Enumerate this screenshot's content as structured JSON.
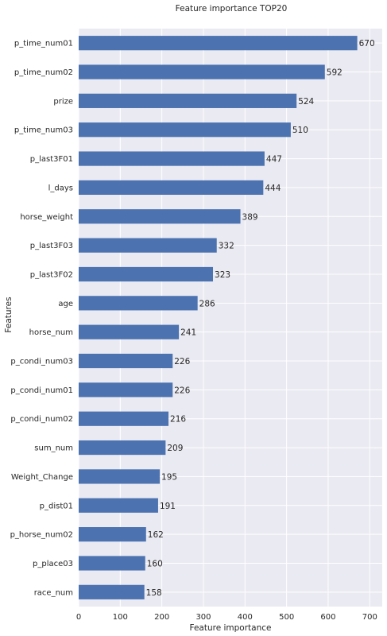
{
  "chart_data": {
    "type": "bar",
    "orientation": "horizontal",
    "title": "Feature importance TOP20",
    "xlabel": "Feature importance",
    "ylabel": "Features",
    "xlim": [
      0,
      730
    ],
    "xticks": [
      0,
      100,
      200,
      300,
      400,
      500,
      600,
      700
    ],
    "grid": true,
    "colors": {
      "bar": "#4c72b0",
      "background": "#eaeaf2",
      "grid": "#ffffff",
      "text": "#262626"
    },
    "categories": [
      "p_time_num01",
      "p_time_num02",
      "prize",
      "p_time_num03",
      "p_last3F01",
      "l_days",
      "horse_weight",
      "p_last3F03",
      "p_last3F02",
      "age",
      "horse_num",
      "p_condi_num03",
      "p_condi_num01",
      "p_condi_num02",
      "sum_num",
      "Weight_Change",
      "p_dist01",
      "p_horse_num02",
      "p_place03",
      "race_num"
    ],
    "values": [
      670,
      592,
      524,
      510,
      447,
      444,
      389,
      332,
      323,
      286,
      241,
      226,
      226,
      216,
      209,
      195,
      191,
      162,
      160,
      158
    ]
  }
}
